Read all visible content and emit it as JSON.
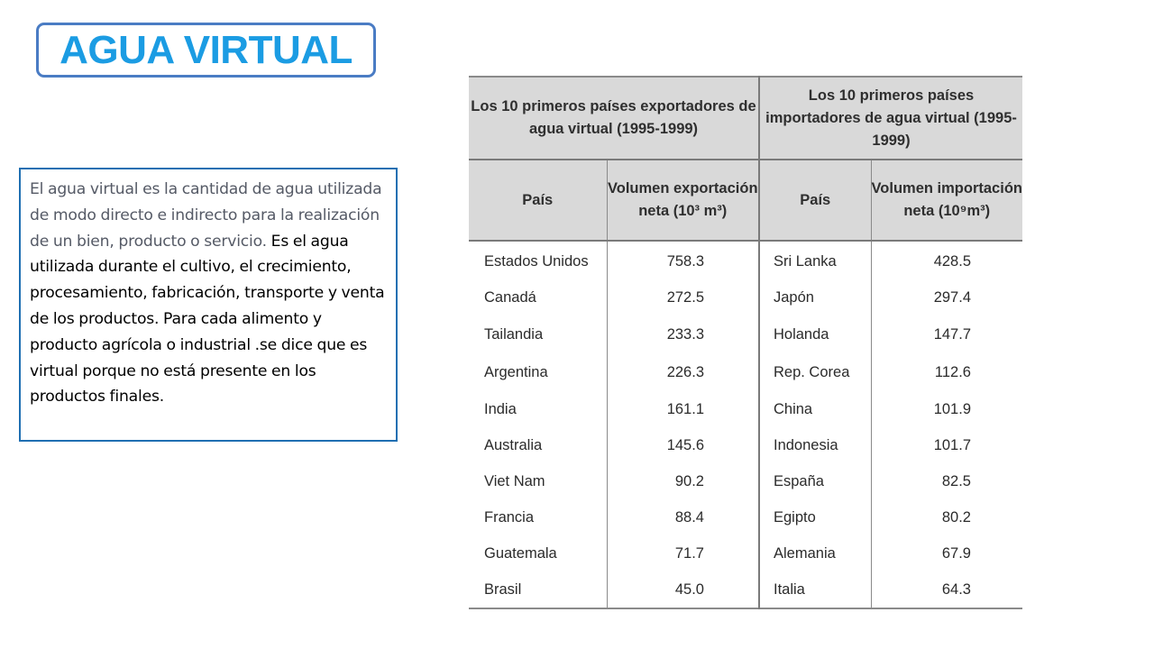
{
  "title": "AGUA VIRTUAL",
  "description": {
    "part1": "El agua virtual es la cantidad de agua utilizada de modo directo e indirecto para la realización de un bien, producto o servicio.",
    "part2": " Es el agua utilizada durante el cultivo, el crecimiento, procesamiento, fabricación, transporte y venta de los productos. Para cada alimento y producto agrícola o industrial .se dice que es virtual porque no está presente en los productos finales."
  },
  "table": {
    "exporters_header": "Los 10 primeros países exportadores de agua virtual (1995-1999)",
    "importers_header": "Los 10 primeros países importadores de agua virtual (1995-1999)",
    "col_country_export": "País",
    "col_volume_export": "Volumen exportación neta (10³ m³)",
    "col_country_import": "País",
    "col_volume_import": "Volumen importación neta (10⁹m³)",
    "rows": [
      {
        "exp_country": "Estados Unidos",
        "exp_value": "758.3",
        "imp_country": "Sri Lanka",
        "imp_value": "428.5"
      },
      {
        "exp_country": "Canadá",
        "exp_value": "272.5",
        "imp_country": "Japón",
        "imp_value": "297.4"
      },
      {
        "exp_country": "Tailandia",
        "exp_value": "233.3",
        "imp_country": "Holanda",
        "imp_value": "147.7"
      },
      {
        "exp_country": "Argentina",
        "exp_value": "226.3",
        "imp_country": "Rep. Corea",
        "imp_value": "112.6"
      },
      {
        "exp_country": "India",
        "exp_value": "161.1",
        "imp_country": "China",
        "imp_value": "101.9"
      },
      {
        "exp_country": "Australia",
        "exp_value": "145.6",
        "imp_country": "Indonesia",
        "imp_value": "101.7"
      },
      {
        "exp_country": "Viet Nam",
        "exp_value": "90.2",
        "imp_country": "España",
        "imp_value": "82.5"
      },
      {
        "exp_country": "Francia",
        "exp_value": "88.4",
        "imp_country": "Egipto",
        "imp_value": "80.2"
      },
      {
        "exp_country": "Guatemala",
        "exp_value": "71.7",
        "imp_country": "Alemania",
        "imp_value": "67.9"
      },
      {
        "exp_country": "Brasil",
        "exp_value": "45.0",
        "imp_country": "Italia",
        "imp_value": "64.3"
      }
    ]
  }
}
